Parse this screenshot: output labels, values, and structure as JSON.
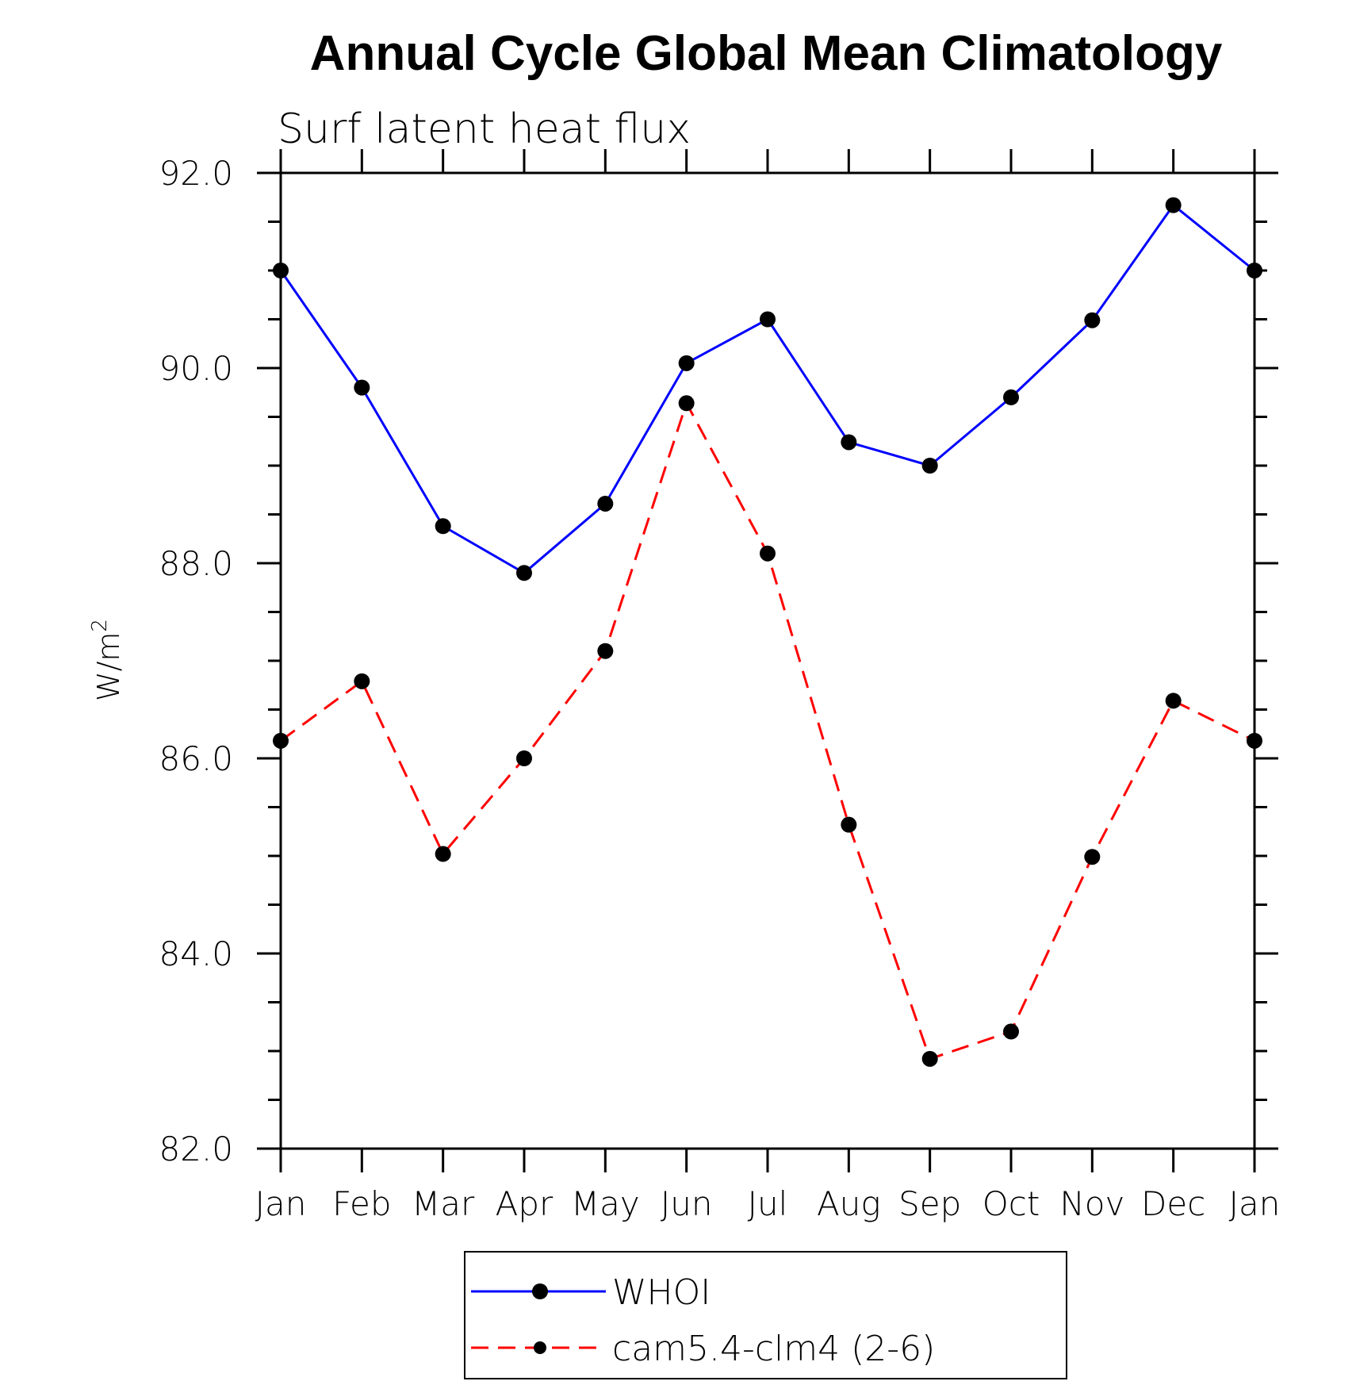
{
  "chart_data": {
    "type": "line",
    "title": "Annual Cycle Global Mean Climatology",
    "subtitle": "Surf latent heat flux",
    "ylabel": "W/m",
    "ylabel_superscript": "2",
    "xlabel": "",
    "categories": [
      "Jan",
      "Feb",
      "Mar",
      "Apr",
      "May",
      "Jun",
      "Jul",
      "Aug",
      "Sep",
      "Oct",
      "Nov",
      "Dec",
      "Jan"
    ],
    "ylim": [
      82.0,
      92.0
    ],
    "yticks": [
      "82.0",
      "84.0",
      "86.0",
      "88.0",
      "90.0",
      "92.0"
    ],
    "ytick_values": [
      82,
      84,
      86,
      88,
      90,
      92
    ],
    "grid": false,
    "legend_position": "bottom",
    "series": [
      {
        "name": "WHOI",
        "color": "#0000ff",
        "line_style": "solid",
        "marker_color": "#000000",
        "values": [
          91.0,
          89.8,
          88.38,
          87.9,
          88.61,
          90.05,
          90.5,
          89.24,
          89.0,
          89.7,
          90.49,
          91.67,
          91.0
        ]
      },
      {
        "name": "cam5.4-clm4 (2-6)",
        "color": "#ff0000",
        "line_style": "dashed",
        "marker_color": "#000000",
        "values": [
          86.18,
          86.79,
          85.02,
          86.0,
          87.1,
          89.64,
          88.1,
          85.32,
          82.92,
          83.2,
          84.99,
          86.59,
          86.18
        ]
      }
    ]
  }
}
